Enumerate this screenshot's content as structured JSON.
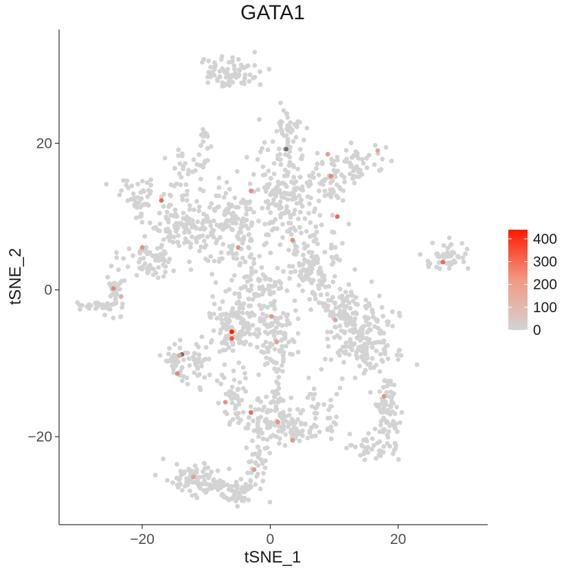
{
  "chart_data": {
    "type": "scatter",
    "title": "GATA1",
    "xlabel": "tSNE_1",
    "ylabel": "tSNE_2",
    "xlim": [
      -33,
      34
    ],
    "ylim": [
      -32,
      35.5
    ],
    "xticks": [
      -20,
      0,
      20
    ],
    "yticks": [
      -20,
      0,
      20
    ],
    "grid": false,
    "legend": {
      "placement": "right",
      "type": "colorbar",
      "min": 0,
      "max": 440,
      "ticks": [
        0,
        100,
        200,
        300,
        400
      ],
      "colors": [
        "#d3d3d3",
        "#ff1a00"
      ]
    },
    "clusters": [
      {
        "cx": -6.5,
        "cy": 29.5,
        "sx": 3.5,
        "sy": 1.6,
        "n": 80
      },
      {
        "cx": -13.5,
        "cy": 16.5,
        "sx": 1.5,
        "sy": 2.2,
        "n": 25
      },
      {
        "cx": -10.5,
        "cy": 19.0,
        "sx": 0.8,
        "sy": 2.0,
        "n": 20
      },
      {
        "cx": -21.0,
        "cy": 12.8,
        "sx": 2.5,
        "sy": 1.6,
        "n": 45
      },
      {
        "cx": -18.5,
        "cy": 4.2,
        "sx": 2.3,
        "sy": 1.8,
        "n": 60
      },
      {
        "cx": -14.0,
        "cy": 8.5,
        "sx": 3.2,
        "sy": 2.2,
        "n": 110
      },
      {
        "cx": -6.0,
        "cy": 9.0,
        "sx": 4.0,
        "sy": 4.0,
        "n": 150
      },
      {
        "cx": 2.5,
        "cy": 12.5,
        "sx": 4.0,
        "sy": 5.5,
        "n": 190
      },
      {
        "cx": 3.2,
        "cy": 21.5,
        "sx": 1.6,
        "sy": 2.4,
        "n": 45
      },
      {
        "cx": 13.5,
        "cy": 17.0,
        "sx": 2.5,
        "sy": 1.6,
        "n": 45
      },
      {
        "cx": 9.5,
        "cy": 14.5,
        "sx": 1.6,
        "sy": 3.2,
        "n": 40
      },
      {
        "cx": 6.5,
        "cy": 3.0,
        "sx": 2.8,
        "sy": 3.2,
        "n": 110
      },
      {
        "cx": 14.5,
        "cy": -6.5,
        "sx": 3.6,
        "sy": 3.6,
        "n": 190
      },
      {
        "cx": 18.5,
        "cy": -17.0,
        "sx": 1.2,
        "sy": 3.8,
        "n": 80
      },
      {
        "cx": 15.5,
        "cy": -21.5,
        "sx": 2.5,
        "sy": 1.2,
        "n": 35
      },
      {
        "cx": 11.0,
        "cy": -2.0,
        "sx": 2.8,
        "sy": 2.2,
        "n": 60
      },
      {
        "cx": 27.5,
        "cy": 4.5,
        "sx": 2.2,
        "sy": 1.4,
        "n": 45
      },
      {
        "cx": -27.5,
        "cy": -2.2,
        "sx": 2.2,
        "sy": 0.4,
        "n": 25
      },
      {
        "cx": -24.0,
        "cy": -0.5,
        "sx": 0.9,
        "sy": 3.0,
        "n": 35
      },
      {
        "cx": -5.5,
        "cy": -5.0,
        "sx": 3.0,
        "sy": 2.8,
        "n": 110
      },
      {
        "cx": 1.0,
        "cy": -5.5,
        "sx": 2.4,
        "sy": 2.8,
        "n": 90
      },
      {
        "cx": -14.5,
        "cy": -10.0,
        "sx": 1.8,
        "sy": 1.8,
        "n": 40
      },
      {
        "cx": -11.5,
        "cy": -10.5,
        "sx": 1.0,
        "sy": 3.0,
        "n": 25
      },
      {
        "cx": -5.5,
        "cy": -14.5,
        "sx": 2.0,
        "sy": 3.0,
        "n": 55
      },
      {
        "cx": 0.0,
        "cy": -17.5,
        "sx": 2.5,
        "sy": 2.2,
        "n": 70
      },
      {
        "cx": 4.0,
        "cy": -19.0,
        "sx": 2.2,
        "sy": 1.5,
        "n": 40
      },
      {
        "cx": 7.0,
        "cy": -16.0,
        "sx": 0.6,
        "sy": 3.0,
        "n": 20
      },
      {
        "cx": 9.5,
        "cy": -16.5,
        "sx": 0.5,
        "sy": 2.5,
        "n": 15
      },
      {
        "cx": -11.5,
        "cy": -26.0,
        "sx": 3.3,
        "sy": 1.6,
        "n": 90
      },
      {
        "cx": -5.0,
        "cy": -27.5,
        "sx": 2.5,
        "sy": 1.2,
        "n": 55
      },
      {
        "cx": -2.0,
        "cy": -23.5,
        "sx": 1.0,
        "sy": 2.5,
        "n": 30
      },
      {
        "cx": 1.2,
        "cy": -14.0,
        "sx": 0.6,
        "sy": 3.5,
        "n": 25
      },
      {
        "cx": -2.5,
        "cy": 0.5,
        "sx": 3.5,
        "sy": 2.5,
        "n": 70
      }
    ],
    "highlights": [
      {
        "x": -6.0,
        "y": -5.7,
        "v": 440
      },
      {
        "x": -6.0,
        "y": -6.6,
        "v": 300
      },
      {
        "x": -14.2,
        "y": -8.9,
        "v": 100
      },
      {
        "x": -14.5,
        "y": -11.4,
        "v": 180
      },
      {
        "x": -20.0,
        "y": 5.8,
        "v": 150
      },
      {
        "x": -17.0,
        "y": 12.2,
        "v": 250
      },
      {
        "x": -3.0,
        "y": 13.5,
        "v": 160
      },
      {
        "x": -5.0,
        "y": 5.8,
        "v": 150
      },
      {
        "x": 3.5,
        "y": 6.8,
        "v": 160
      },
      {
        "x": 9.5,
        "y": 15.5,
        "v": 180
      },
      {
        "x": 10.5,
        "y": 10.0,
        "v": 250
      },
      {
        "x": 9.0,
        "y": 18.5,
        "v": 120
      },
      {
        "x": 27.0,
        "y": 3.8,
        "v": 250
      },
      {
        "x": -24.5,
        "y": 0.2,
        "v": 180
      },
      {
        "x": 0.2,
        "y": -3.6,
        "v": 150
      },
      {
        "x": 1.0,
        "y": -7.1,
        "v": 120
      },
      {
        "x": -3.0,
        "y": -16.7,
        "v": 250
      },
      {
        "x": -7.0,
        "y": -15.3,
        "v": 150
      },
      {
        "x": 1.2,
        "y": -18.0,
        "v": 150
      },
      {
        "x": 3.5,
        "y": -20.5,
        "v": 140
      },
      {
        "x": 17.8,
        "y": -14.5,
        "v": 150
      },
      {
        "x": 10.2,
        "y": -4.1,
        "v": 110
      },
      {
        "x": -2.5,
        "y": -24.5,
        "v": 130
      },
      {
        "x": -12.0,
        "y": -25.5,
        "v": 120
      },
      {
        "x": 16.8,
        "y": 19.0,
        "v": 110
      },
      {
        "x": -23.3,
        "y": -0.9,
        "v": 80
      }
    ],
    "dark_points": [
      {
        "x": 2.5,
        "y": 19.2
      },
      {
        "x": -13.8,
        "y": -8.8
      }
    ]
  }
}
